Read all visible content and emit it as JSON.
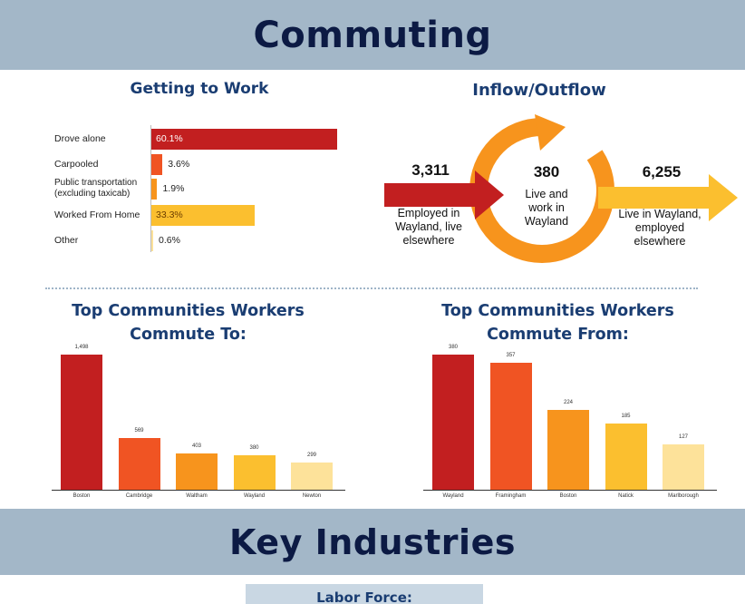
{
  "header": {
    "title": "Commuting"
  },
  "getting_to_work": {
    "title": "Getting to Work",
    "rows": [
      {
        "label": "Drove alone",
        "value_label": "60.1%",
        "value": 60.1,
        "color": "#c21f20"
      },
      {
        "label": "Carpooled",
        "value_label": "3.6%",
        "value": 3.6,
        "color": "#f05423"
      },
      {
        "label": "Public transportation (excluding taxicab)",
        "value_label": "1.9%",
        "value": 1.9,
        "color": "#f7941d"
      },
      {
        "label": "Worked From Home",
        "value_label": "33.3%",
        "value": 33.3,
        "color": "#fbbf2f"
      },
      {
        "label": "Other",
        "value_label": "0.6%",
        "value": 0.6,
        "color": "#fde29a"
      }
    ]
  },
  "inflow_outflow": {
    "title": "Inflow/Outflow",
    "inflow_number": "3,311",
    "inflow_text": "Employed in Wayland, live elsewhere",
    "center_number": "380",
    "center_text": "Live and work in Wayland",
    "outflow_number": "6,255",
    "outflow_text": "Live in Wayland, employed elsewhere"
  },
  "commute_to": {
    "title_line1": "Top Communities Workers",
    "title_line2": "Commute To:"
  },
  "commute_from": {
    "title_line1": "Top Communities Workers",
    "title_line2": "Commute From:"
  },
  "chart_data": [
    {
      "type": "bar",
      "title": "Top Communities Workers Commute To:",
      "categories": [
        "Boston",
        "Cambridge",
        "Waltham",
        "Wayland",
        "Newton"
      ],
      "values": [
        1498,
        569,
        403,
        380,
        299
      ],
      "value_labels": [
        "1,498",
        "569",
        "403",
        "380",
        "299"
      ],
      "colors": [
        "#c21f20",
        "#f05423",
        "#f7941d",
        "#fbbf2f",
        "#fde29a"
      ],
      "ylim": [
        0,
        1498
      ]
    },
    {
      "type": "bar",
      "title": "Top Communities Workers Commute From:",
      "categories": [
        "Wayland",
        "Framingham",
        "Boston",
        "Natick",
        "Marlborough"
      ],
      "values": [
        380,
        357,
        224,
        185,
        127
      ],
      "value_labels": [
        "380",
        "357",
        "224",
        "185",
        "127"
      ],
      "colors": [
        "#c21f20",
        "#f05423",
        "#f7941d",
        "#fbbf2f",
        "#fde29a"
      ],
      "ylim": [
        0,
        380
      ]
    }
  ],
  "key_industries": {
    "title": "Key Industries"
  },
  "labor_force": {
    "title": "Labor Force:"
  }
}
